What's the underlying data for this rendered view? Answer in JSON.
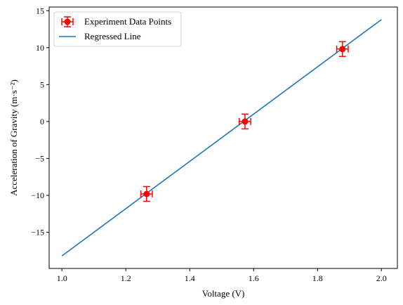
{
  "chart_data": {
    "type": "scatter",
    "xlabel": "Voltage (V)",
    "ylabel": "Acceleration of Gravity (m·s⁻²)",
    "xlim": [
      0.96,
      2.05
    ],
    "ylim": [
      -19.9,
      15.5
    ],
    "x_ticks": [
      1.0,
      1.2,
      1.4,
      1.6,
      1.8,
      2.0
    ],
    "x_tick_labels": [
      "1.0",
      "1.2",
      "1.4",
      "1.6",
      "1.8",
      "2.0"
    ],
    "y_ticks": [
      -15,
      -10,
      -5,
      0,
      5,
      10,
      15
    ],
    "y_tick_labels": [
      "−15",
      "−10",
      "−5",
      "0",
      "5",
      "10",
      "15"
    ],
    "grid": false,
    "legend_position": "top-left",
    "series": [
      {
        "name": "Experiment Data Points",
        "kind": "errorbar",
        "color": "#ff0000",
        "points": [
          {
            "x": 1.265,
            "y": -9.81,
            "xerr": 0.018,
            "yerr": 1.0
          },
          {
            "x": 1.573,
            "y": 0.0,
            "xerr": 0.018,
            "yerr": 1.0
          },
          {
            "x": 1.878,
            "y": 9.81,
            "xerr": 0.018,
            "yerr": 1.0
          }
        ]
      },
      {
        "name": "Regressed Line",
        "kind": "line",
        "color": "#1f77b4",
        "x": [
          1.0,
          2.0
        ],
        "y": [
          -18.2,
          13.8
        ]
      }
    ]
  }
}
